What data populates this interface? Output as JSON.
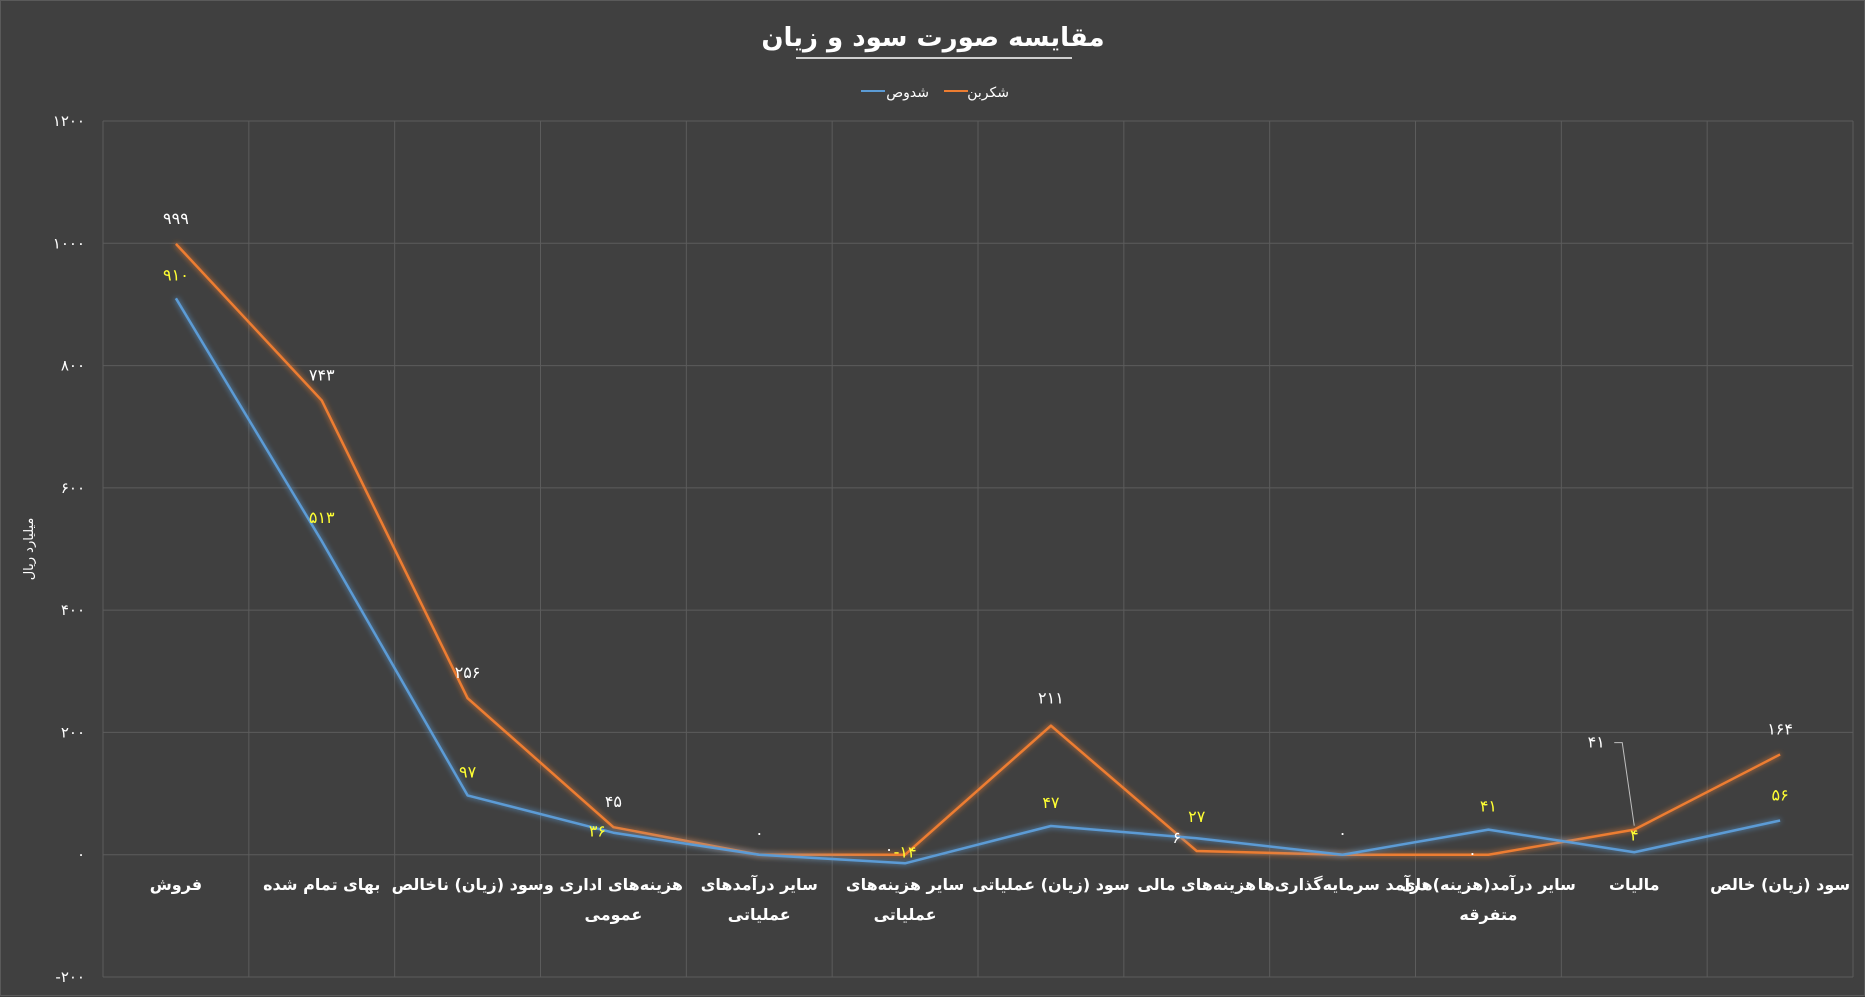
{
  "chart_data": {
    "type": "line",
    "title": "مقایسه صورت سود و زیان",
    "ylabel": "میلیارد ریال",
    "xlabel": "",
    "ylim": [
      -200,
      1200
    ],
    "yticks": [
      {
        "value": 1200,
        "label": "۱۲۰۰"
      },
      {
        "value": 1000,
        "label": "۱۰۰۰"
      },
      {
        "value": 800,
        "label": "۸۰۰"
      },
      {
        "value": 600,
        "label": "۶۰۰"
      },
      {
        "value": 400,
        "label": "۴۰۰"
      },
      {
        "value": 200,
        "label": "۲۰۰"
      },
      {
        "value": 0,
        "label": "۰"
      },
      {
        "value": -200,
        "label": "-۲۰۰"
      }
    ],
    "grid": true,
    "legend_position": "top-center",
    "categories": [
      [
        "فروش"
      ],
      [
        "بهای تمام شده"
      ],
      [
        "سود (زیان) ناخالص"
      ],
      [
        "هزینه‌های اداری و",
        "عمومی"
      ],
      [
        "سایر درآمدهای",
        "عملیاتی"
      ],
      [
        "سایر هزینه‌های",
        "عملیاتی"
      ],
      [
        "سود (زیان) عملیاتی"
      ],
      [
        "هزینه‌های مالی"
      ],
      [
        "درآمد سرمایه‌گذاری‌ها"
      ],
      [
        "سایر درآمد(هزینه)های",
        "متفرقه"
      ],
      [
        "مالیات"
      ],
      [
        "سود (زیان) خالص"
      ]
    ],
    "series": [
      {
        "name": "شکربن",
        "color": "#ed7d31",
        "values": [
          999,
          743,
          256,
          45,
          0,
          0,
          211,
          6,
          0,
          0,
          41,
          164
        ],
        "labels": [
          "۹۹۹",
          "۷۴۳",
          "۲۵۶",
          "۴۵",
          "۰",
          "۰",
          "۲۱۱",
          "۶",
          "۰",
          "۰",
          "۴۱",
          "۱۶۴"
        ]
      },
      {
        "name": "شدوص",
        "color": "#5b9bd5",
        "values": [
          910,
          513,
          97,
          36,
          0,
          -14,
          47,
          27,
          0,
          41,
          4,
          56
        ],
        "labels": [
          "۹۱۰",
          "۵۱۳",
          "۹۷",
          "۳۶",
          "",
          "-۱۴",
          "۴۷",
          "۲۷",
          "",
          "۴۱",
          "۴",
          "۵۶"
        ]
      }
    ]
  }
}
